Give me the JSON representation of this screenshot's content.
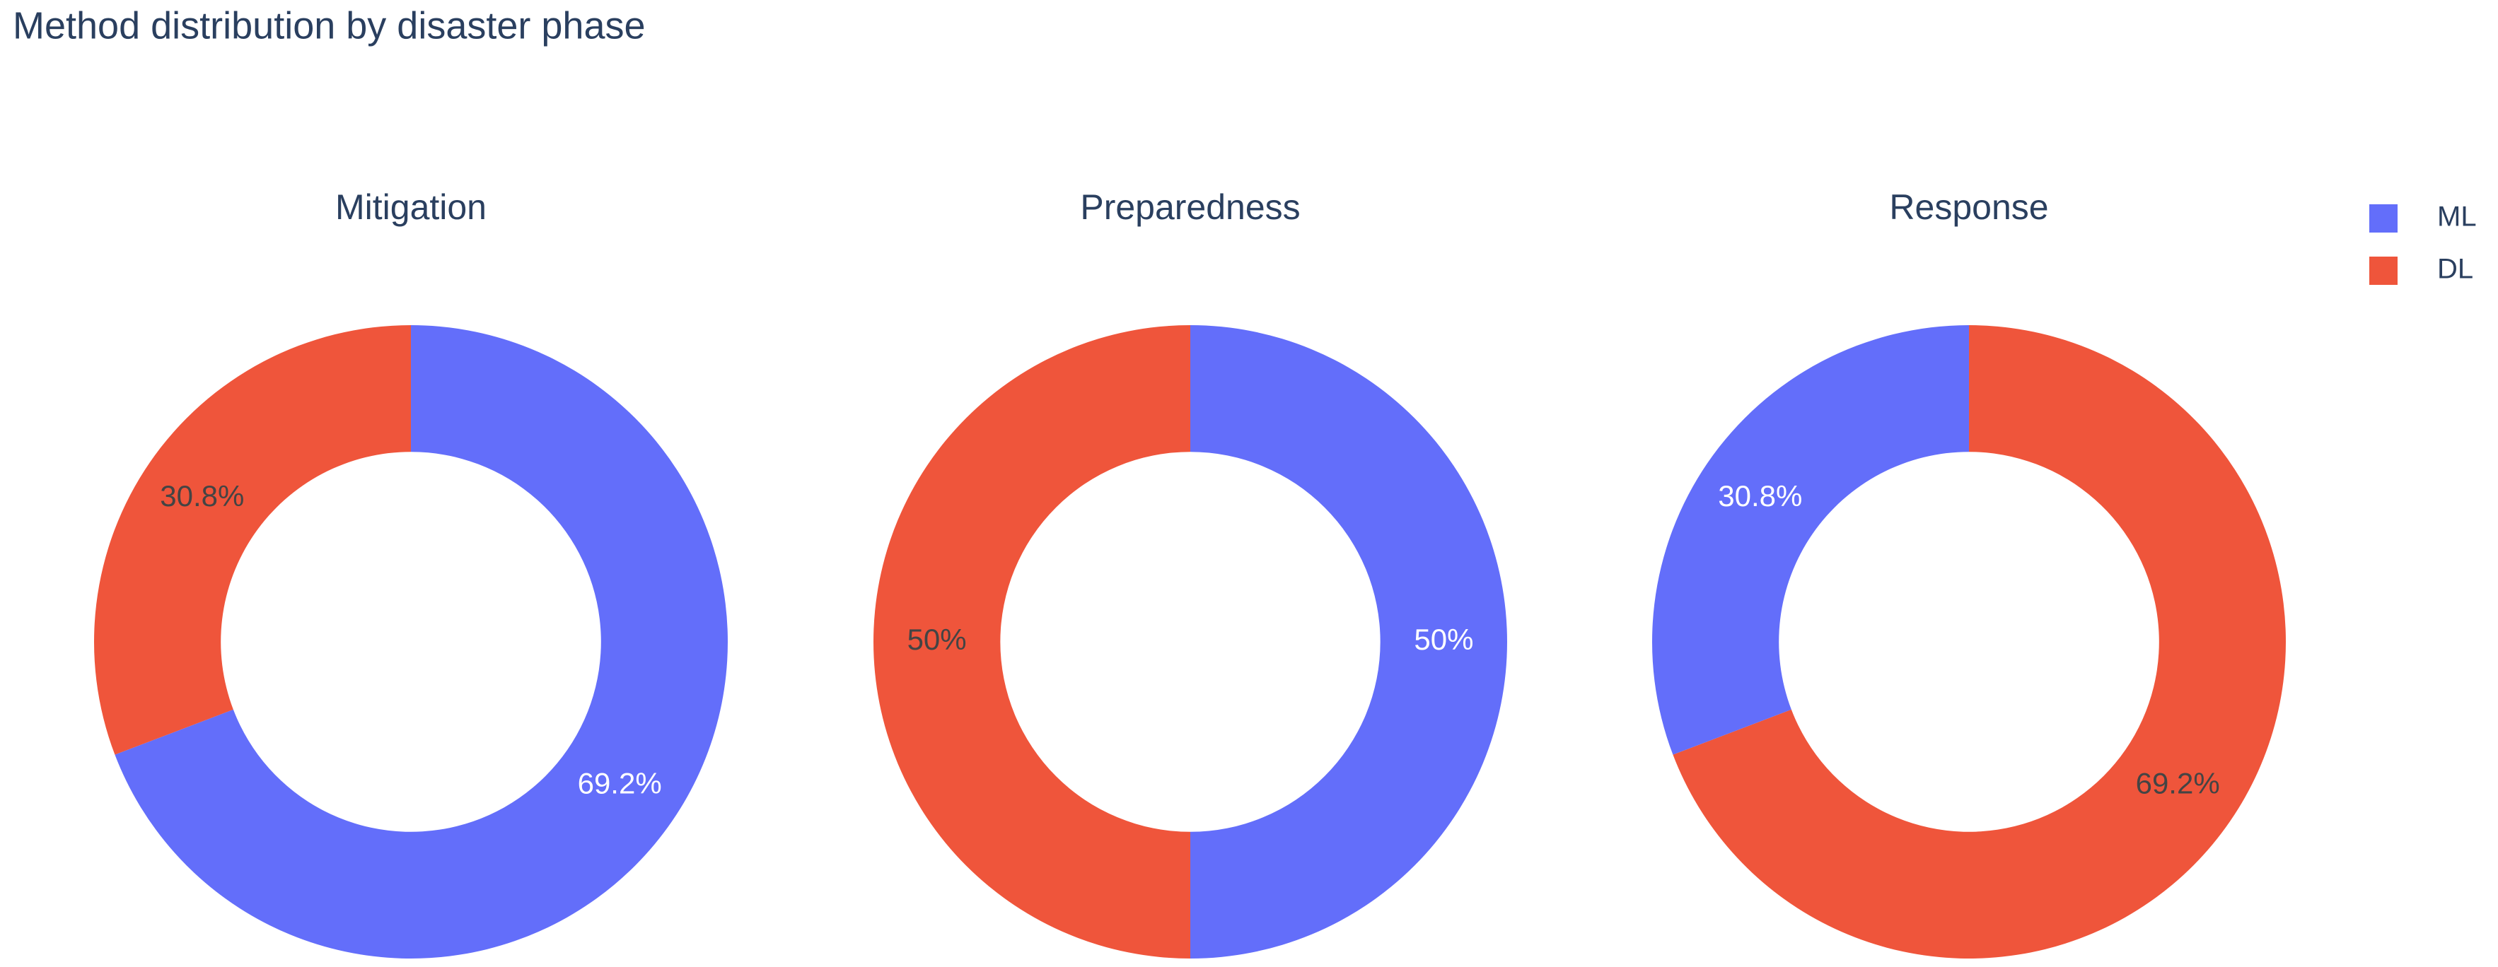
{
  "title": "Method distribution by disaster phase",
  "legend": [
    {
      "name": "ML",
      "color": "#636efa"
    },
    {
      "name": "DL",
      "color": "#ef553b"
    }
  ],
  "chart_data": [
    {
      "type": "pie",
      "title": "Mitigation",
      "categories": [
        "ML",
        "DL"
      ],
      "values": [
        69.2,
        30.8
      ],
      "value_labels": [
        "69.2%",
        "30.8%"
      ],
      "colors": [
        "#636efa",
        "#ef553b"
      ],
      "label_colors": [
        "#ffffff",
        "#444444"
      ],
      "hole": 0.6
    },
    {
      "type": "pie",
      "title": "Preparedness",
      "categories": [
        "ML",
        "DL"
      ],
      "values": [
        50,
        50
      ],
      "value_labels": [
        "50%",
        "50%"
      ],
      "colors": [
        "#636efa",
        "#ef553b"
      ],
      "label_colors": [
        "#ffffff",
        "#444444"
      ],
      "hole": 0.6
    },
    {
      "type": "pie",
      "title": "Response",
      "categories": [
        "DL",
        "ML"
      ],
      "values": [
        69.2,
        30.8
      ],
      "value_labels": [
        "69.2%",
        "30.8%"
      ],
      "colors": [
        "#ef553b",
        "#636efa"
      ],
      "label_colors": [
        "#444444",
        "#ffffff"
      ],
      "hole": 0.6
    }
  ]
}
